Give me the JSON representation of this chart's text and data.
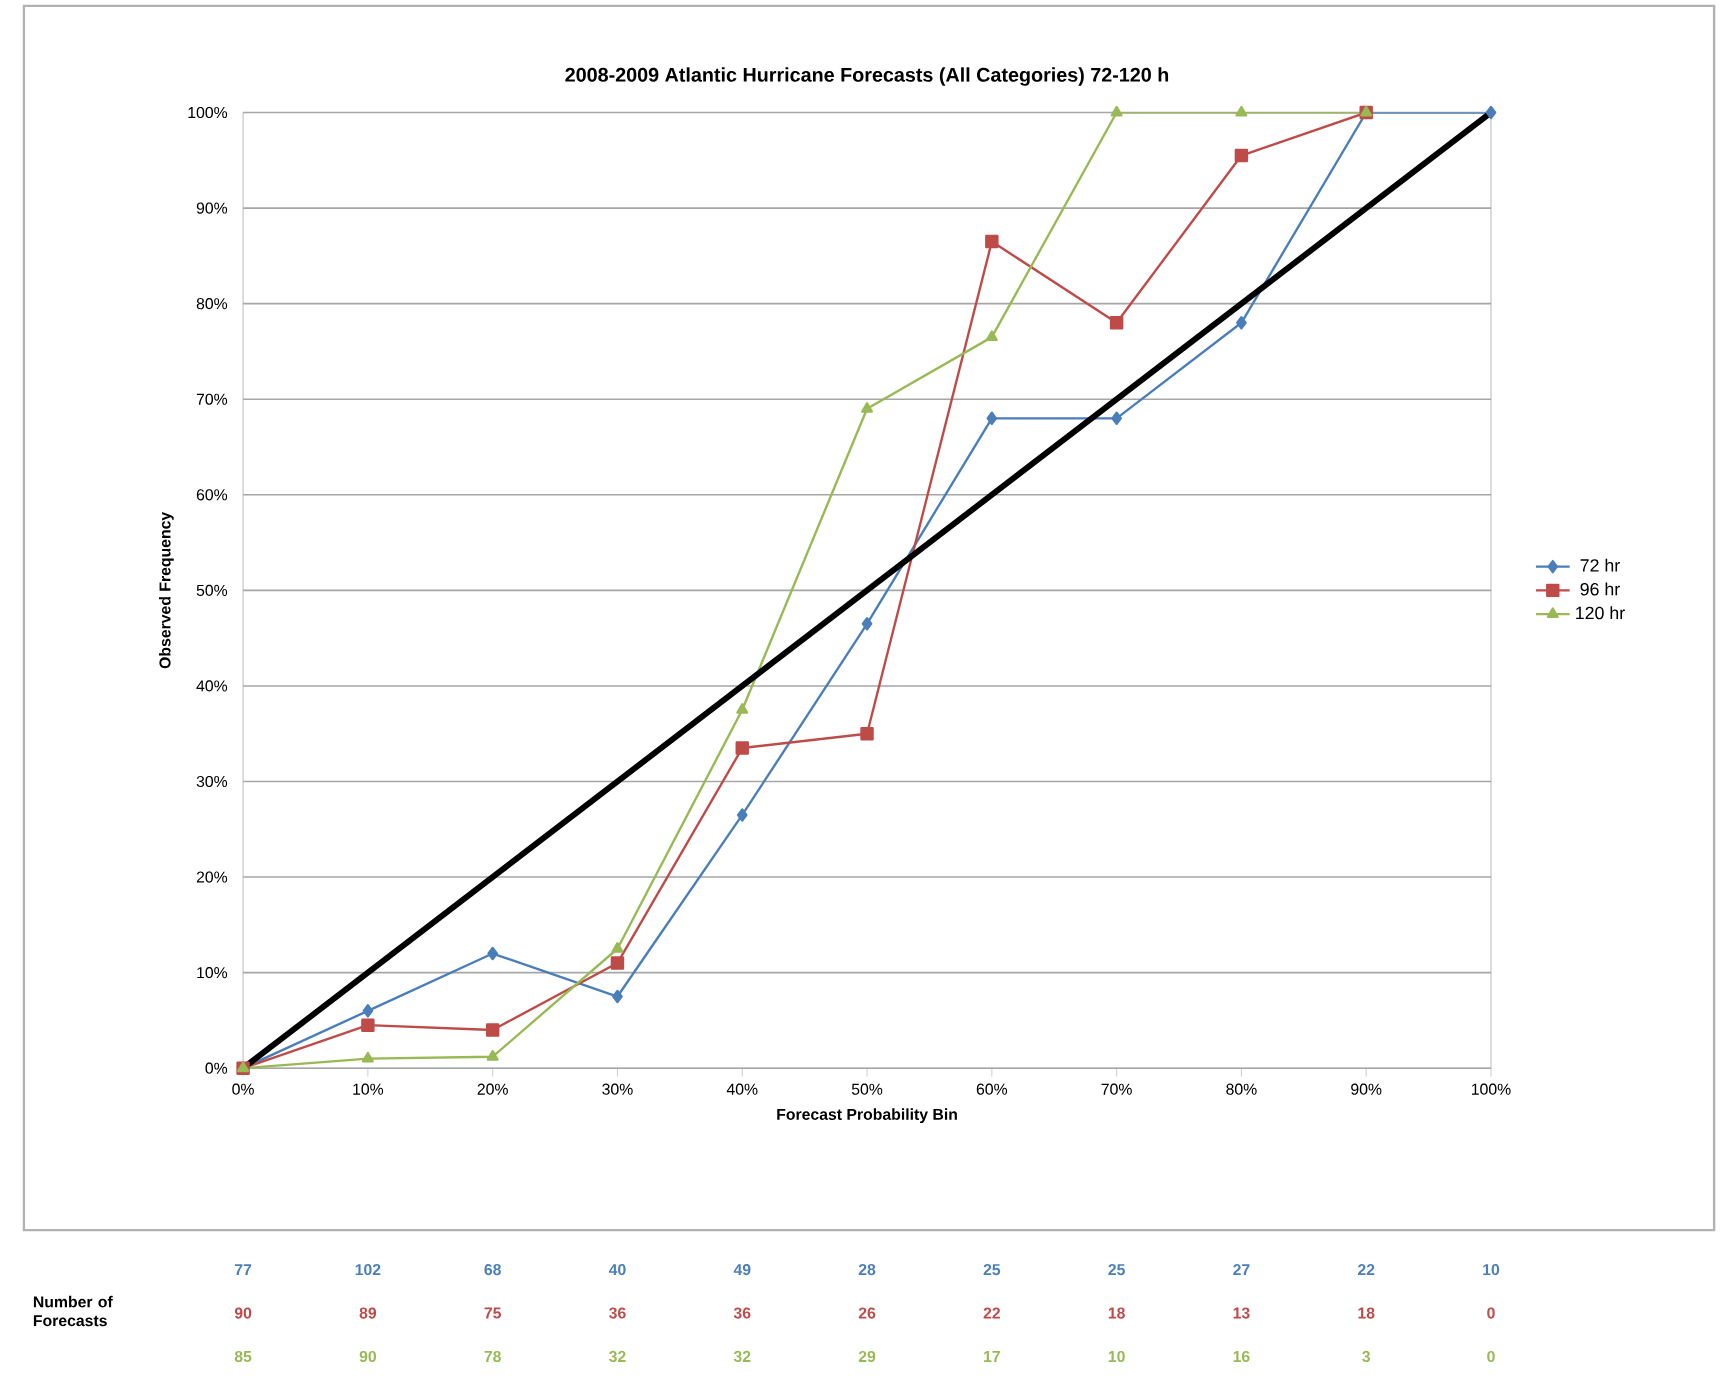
{
  "chart_data": {
    "type": "line",
    "title": "2008-2009 Atlantic Hurricane Forecasts (All Categories) 72-120 h",
    "xlabel": "Forecast Probability Bin",
    "ylabel": "Observed Frequency",
    "x": [
      0,
      10,
      20,
      30,
      40,
      50,
      60,
      70,
      80,
      90,
      100
    ],
    "series": [
      {
        "name": "72 hr",
        "color": "#4a7ebb",
        "marker": "diamond",
        "values": [
          0,
          6,
          12,
          7.5,
          26.5,
          46.5,
          68,
          68,
          78,
          100,
          100
        ]
      },
      {
        "name": "96 hr",
        "color": "#be4b48",
        "marker": "square",
        "values": [
          0,
          4.5,
          4,
          11,
          33.5,
          35,
          86.5,
          78,
          95.5,
          100,
          null
        ]
      },
      {
        "name": "120 hr",
        "color": "#98b954",
        "marker": "triangle",
        "values": [
          0,
          1,
          1.2,
          12.5,
          37.5,
          69,
          76.5,
          100,
          100,
          100,
          null
        ]
      },
      {
        "color": "#000000",
        "marker": "none",
        "x": [
          0,
          100
        ],
        "values": [
          0,
          100
        ]
      }
    ],
    "xlim": [
      0,
      100
    ],
    "ylim": [
      0,
      100
    ],
    "xticks": [
      {
        "value": 0,
        "label": "0%"
      },
      {
        "value": 10,
        "label": "10%"
      },
      {
        "value": 20,
        "label": "20%"
      },
      {
        "value": 30,
        "label": "30%"
      },
      {
        "value": 40,
        "label": "40%"
      },
      {
        "value": 50,
        "label": "50%"
      },
      {
        "value": 60,
        "label": "60%"
      },
      {
        "value": 70,
        "label": "70%"
      },
      {
        "value": 80,
        "label": "80%"
      },
      {
        "value": 90,
        "label": "90%"
      },
      {
        "value": 100,
        "label": "100%"
      }
    ],
    "yticks": [
      {
        "value": 0,
        "label": "0%"
      },
      {
        "value": 10,
        "label": "10%"
      },
      {
        "value": 20,
        "label": "20%"
      },
      {
        "value": 30,
        "label": "30%"
      },
      {
        "value": 40,
        "label": "40%"
      },
      {
        "value": 50,
        "label": "50%"
      },
      {
        "value": 60,
        "label": "60%"
      },
      {
        "value": 70,
        "label": "70%"
      },
      {
        "value": 80,
        "label": "80%"
      },
      {
        "value": 90,
        "label": "90%"
      },
      {
        "value": 100,
        "label": "100%"
      }
    ],
    "grid": "y",
    "legend": "right",
    "annotations": [
      "Number of Forecasts",
      "77",
      "102",
      "68",
      "40",
      "49",
      "28",
      "25",
      "25",
      "27",
      "22",
      "10",
      "90",
      "89",
      "75",
      "36",
      "36",
      "26",
      "22",
      "18",
      "13",
      "18",
      "0",
      "85",
      "90",
      "78",
      "32",
      "32",
      "29",
      "17",
      "10",
      "16",
      "3",
      "0"
    ]
  }
}
